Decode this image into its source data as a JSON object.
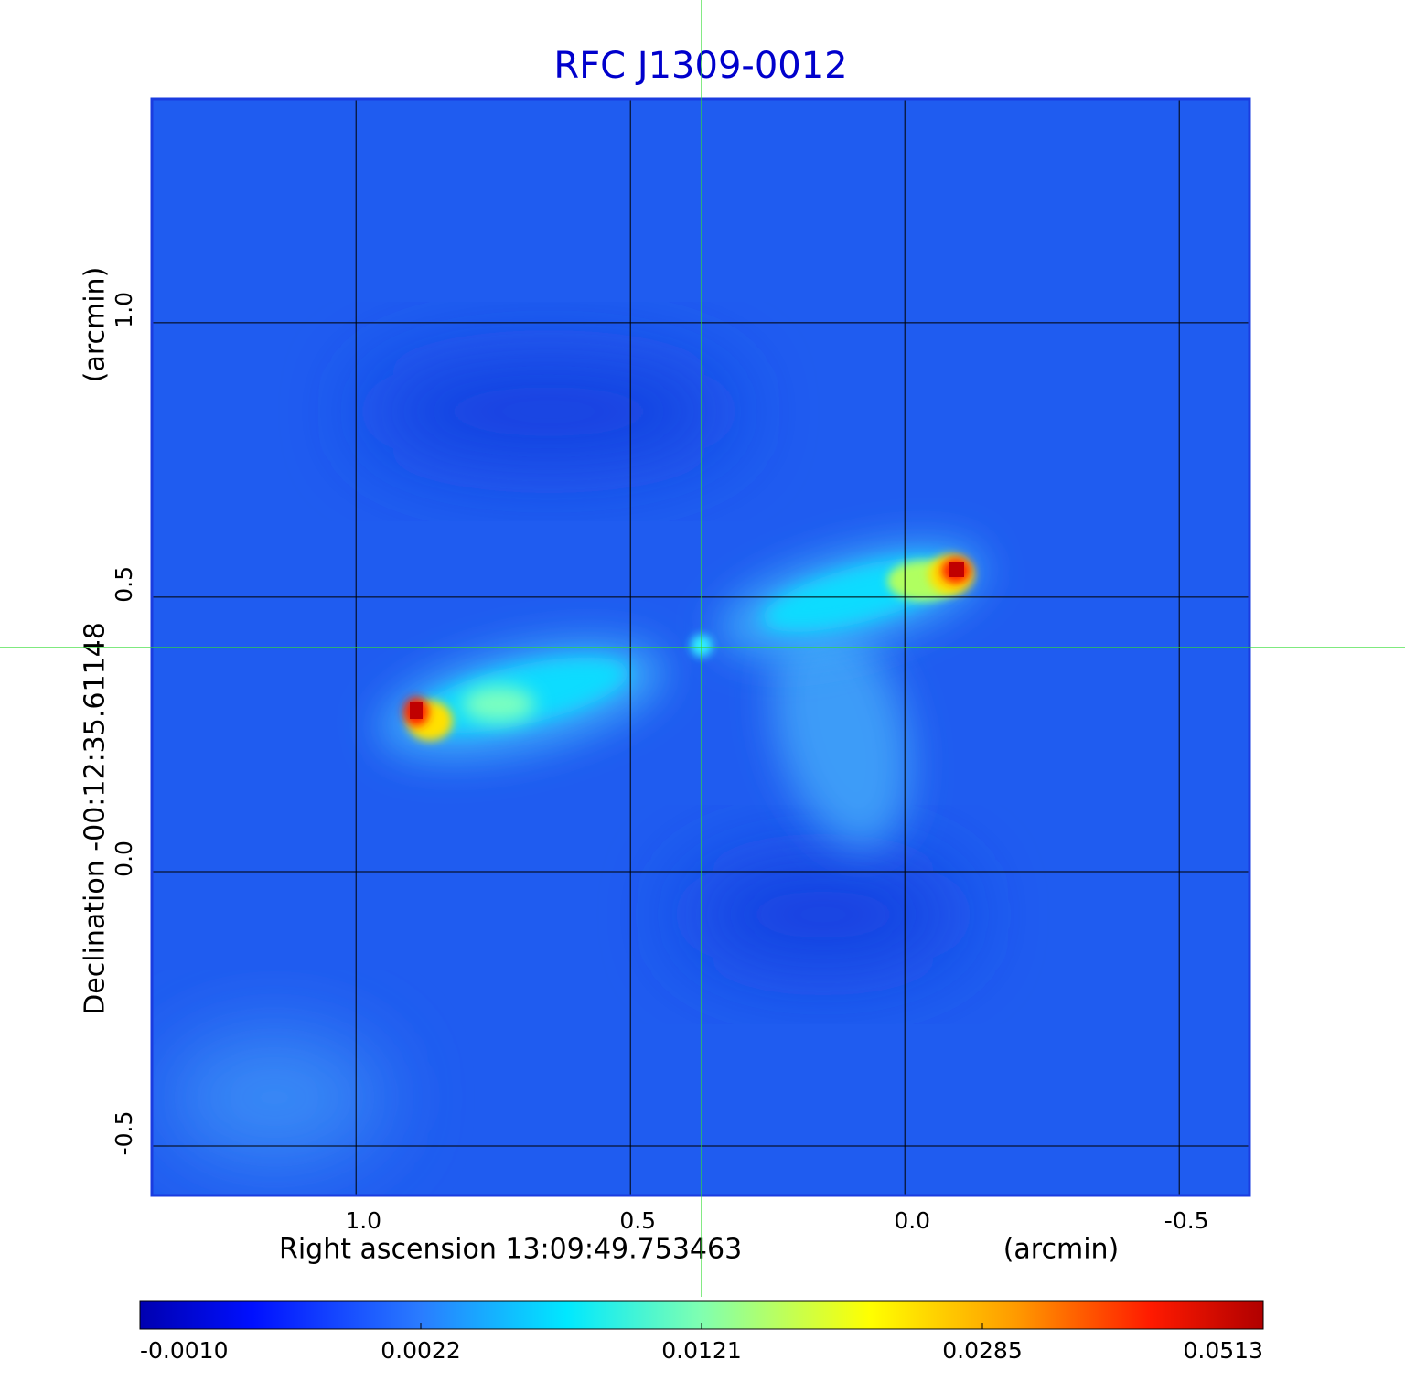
{
  "chart_data": {
    "type": "image",
    "title": "RFC J1309-0012",
    "xlabel": "Right ascension  13:09:49.753463",
    "xunit": "(arcmin)",
    "ylabel": "Declination  -00:12:35.61148",
    "yunit": "(arcmin)",
    "xlim": [
      1.372,
      -0.628
    ],
    "xticks": [
      {
        "value": 1,
        "label": "1.0"
      },
      0.5,
      {
        "value": 0,
        "label": "0.0"
      },
      -0.5
    ],
    "ylim": [
      -0.59,
      1.408
    ],
    "yticks": [
      -0.5,
      {
        "value": 0,
        "label": "0.0"
      },
      0.5,
      {
        "value": 1,
        "label": "1.0"
      }
    ],
    "grid": true,
    "colorbar": {
      "ticks": [
        {
          "value": -0.001,
          "label": "-0.0010"
        },
        0.0022,
        0.0121,
        0.0285,
        0.0513
      ]
    }
  }
}
